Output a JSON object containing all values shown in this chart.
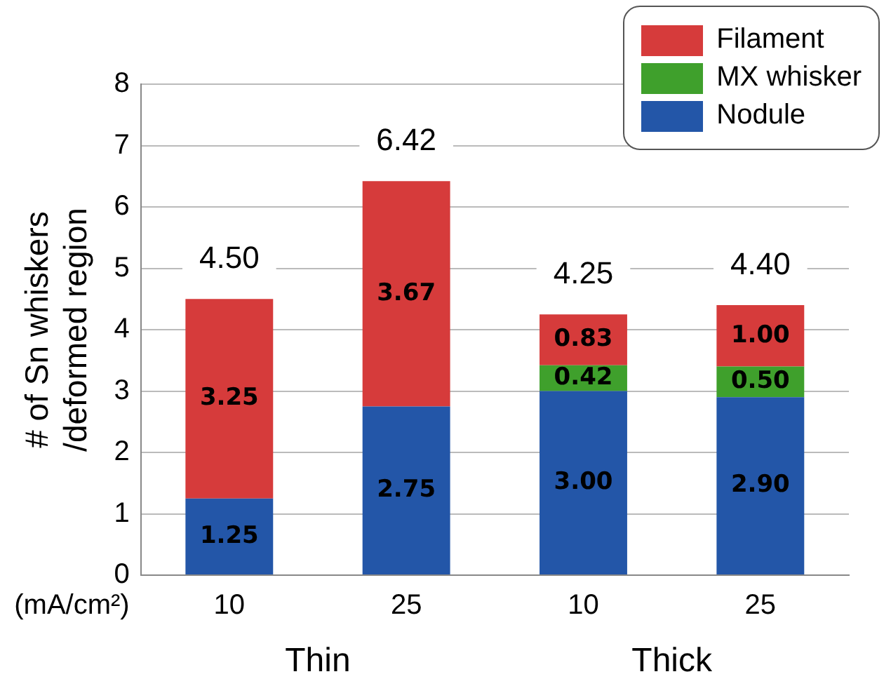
{
  "chart_data": {
    "type": "bar",
    "stacked": true,
    "ylabel": "# of Sn whiskers /deformed region",
    "xlabel": "(mA/cm²)",
    "categories": [
      "10",
      "25",
      "10",
      "25"
    ],
    "series": [
      {
        "name": "Nodule",
        "color": "#2356a8",
        "values": [
          1.25,
          2.75,
          3.0,
          2.9
        ],
        "value_labels": [
          "1.25",
          "2.75",
          "3.00",
          "2.90"
        ]
      },
      {
        "name": "MX whisker",
        "color": "#3fa02c",
        "values": [
          null,
          null,
          0.42,
          0.5
        ],
        "value_labels": [
          null,
          null,
          "0.42",
          "0.50"
        ]
      },
      {
        "name": "Filament",
        "color": "#d63b3b",
        "values": [
          3.25,
          3.67,
          0.83,
          1.0
        ],
        "value_labels": [
          "3.25",
          "3.67",
          "0.83",
          "1.00"
        ]
      }
    ],
    "totals": [
      "4.50",
      "6.42",
      "4.25",
      "4.40"
    ],
    "annotations": [
      "Thin",
      "Thick"
    ],
    "ylim": [
      0,
      8
    ],
    "yticks": [
      0,
      1,
      2,
      3,
      4,
      5,
      6,
      7,
      8
    ],
    "grid": "y",
    "legend": "top right"
  }
}
